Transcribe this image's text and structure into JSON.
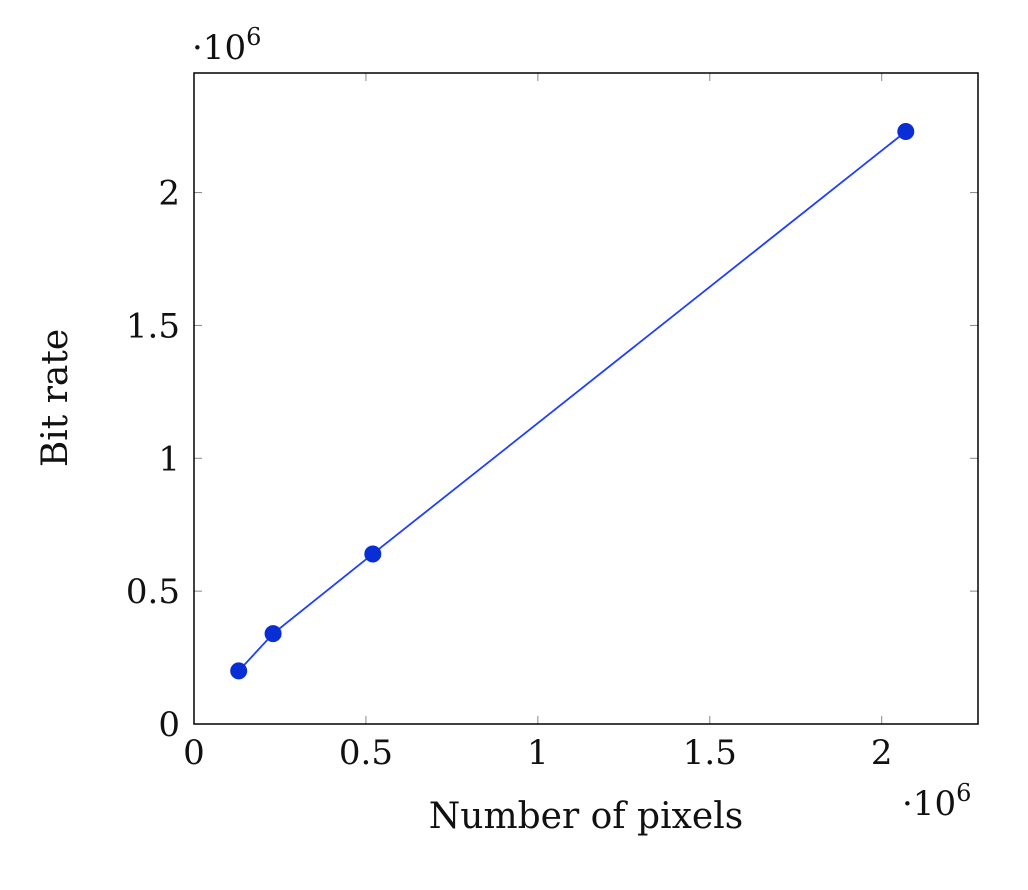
{
  "chart_data": {
    "type": "line",
    "title": "",
    "xlabel": "Number of pixels",
    "ylabel": "Bit rate",
    "x_scale_label": "·10",
    "x_scale_exponent": "6",
    "y_scale_label": "·10",
    "y_scale_exponent": "6",
    "xlim": [
      0,
      2.28
    ],
    "ylim": [
      0,
      2.45
    ],
    "x_ticks": [
      {
        "value": 0,
        "label": "0"
      },
      {
        "value": 0.5,
        "label": "0.5"
      },
      {
        "value": 1,
        "label": "1"
      },
      {
        "value": 1.5,
        "label": "1.5"
      },
      {
        "value": 2,
        "label": "2"
      }
    ],
    "y_ticks": [
      {
        "value": 0,
        "label": "0"
      },
      {
        "value": 0.5,
        "label": "0.5"
      },
      {
        "value": 1,
        "label": "1"
      },
      {
        "value": 1.5,
        "label": "1.5"
      },
      {
        "value": 2,
        "label": "2"
      }
    ],
    "grid": false,
    "series": [
      {
        "name": "Bit rate",
        "color": "#1f3fff",
        "marker_color": "#0a2ed6",
        "x": [
          0.13,
          0.23,
          0.52,
          2.07
        ],
        "y": [
          0.2,
          0.34,
          0.64,
          2.23
        ]
      }
    ]
  }
}
